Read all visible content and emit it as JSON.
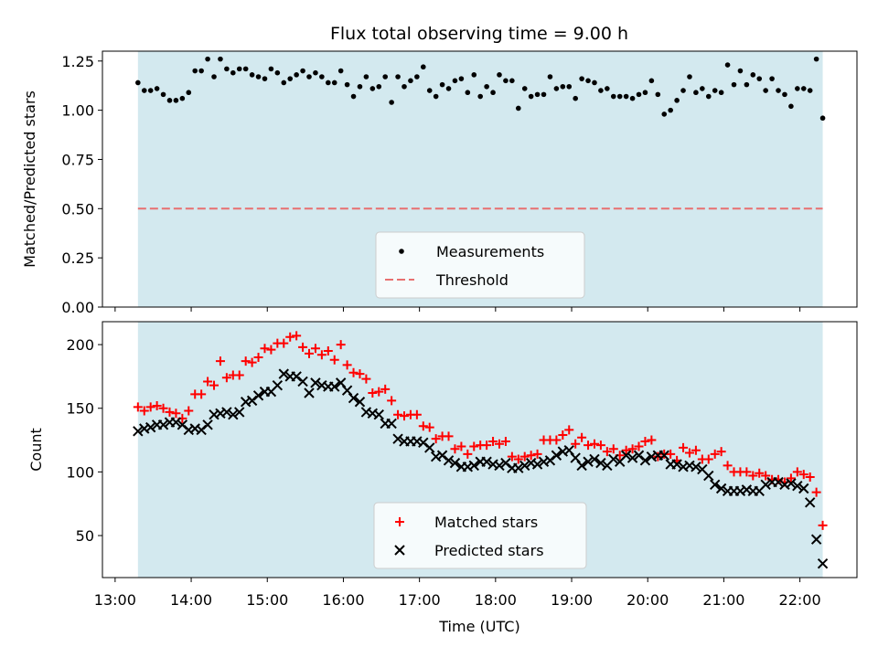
{
  "title": "Flux total observing time = 9.00 h",
  "chart_data": [
    {
      "type": "scatter",
      "ylabel": "Matched/Predicted stars",
      "xlabel": "",
      "ylim": [
        0,
        1.3
      ],
      "xlim": [
        "12:50",
        "22:45"
      ],
      "grid": false,
      "legend_position": "lower-center",
      "yticks": [
        "0.00",
        "0.25",
        "0.50",
        "0.75",
        "1.00",
        "1.25"
      ],
      "observing_window": [
        "13:18",
        "22:18"
      ],
      "observing_window_color": "#d3e9ef",
      "threshold": {
        "name": "Threshold",
        "value": 0.5,
        "color": "#e87070",
        "style": "dashed"
      },
      "series": [
        {
          "name": "Measurements",
          "color": "#000000",
          "marker": "dot",
          "x": [
            "13:18",
            "13:23",
            "13:28",
            "13:33",
            "13:38",
            "13:43",
            "13:48",
            "13:53",
            "13:58",
            "14:03",
            "14:08",
            "14:13",
            "14:18",
            "14:23",
            "14:28",
            "14:33",
            "14:38",
            "14:43",
            "14:48",
            "14:53",
            "14:58",
            "15:03",
            "15:08",
            "15:13",
            "15:18",
            "15:23",
            "15:28",
            "15:33",
            "15:38",
            "15:43",
            "15:48",
            "15:53",
            "15:58",
            "16:03",
            "16:08",
            "16:13",
            "16:18",
            "16:23",
            "16:28",
            "16:33",
            "16:38",
            "16:43",
            "16:48",
            "16:53",
            "16:58",
            "17:03",
            "17:08",
            "17:13",
            "17:18",
            "17:23",
            "17:28",
            "17:33",
            "17:38",
            "17:43",
            "17:48",
            "17:53",
            "17:58",
            "18:03",
            "18:08",
            "18:13",
            "18:18",
            "18:23",
            "18:28",
            "18:33",
            "18:38",
            "18:43",
            "18:48",
            "18:53",
            "18:58",
            "19:03",
            "19:08",
            "19:13",
            "19:18",
            "19:23",
            "19:28",
            "19:33",
            "19:38",
            "19:43",
            "19:48",
            "19:53",
            "19:58",
            "20:03",
            "20:08",
            "20:13",
            "20:18",
            "20:23",
            "20:28",
            "20:33",
            "20:38",
            "20:43",
            "20:48",
            "20:53",
            "20:58",
            "21:03",
            "21:08",
            "21:13",
            "21:18",
            "21:23",
            "21:28",
            "21:33",
            "21:38",
            "21:43",
            "21:48",
            "21:53",
            "21:58",
            "22:03",
            "22:08",
            "22:13",
            "22:18"
          ],
          "values": [
            1.14,
            1.1,
            1.1,
            1.11,
            1.08,
            1.05,
            1.05,
            1.06,
            1.09,
            1.2,
            1.2,
            1.26,
            1.17,
            1.26,
            1.21,
            1.19,
            1.21,
            1.21,
            1.18,
            1.17,
            1.16,
            1.21,
            1.19,
            1.14,
            1.16,
            1.18,
            1.2,
            1.17,
            1.19,
            1.17,
            1.14,
            1.14,
            1.2,
            1.13,
            1.07,
            1.12,
            1.17,
            1.11,
            1.12,
            1.17,
            1.04,
            1.17,
            1.12,
            1.15,
            1.17,
            1.22,
            1.1,
            1.07,
            1.13,
            1.11,
            1.15,
            1.16,
            1.09,
            1.18,
            1.07,
            1.12,
            1.09,
            1.18,
            1.15,
            1.15,
            1.01,
            1.11,
            1.07,
            1.08,
            1.08,
            1.17,
            1.11,
            1.12,
            1.12,
            1.06,
            1.16,
            1.15,
            1.14,
            1.1,
            1.11,
            1.07,
            1.07,
            1.07,
            1.06,
            1.08,
            1.09,
            1.15,
            1.08,
            0.98,
            1.0,
            1.05,
            1.1,
            1.17,
            1.09,
            1.11,
            1.07,
            1.1,
            1.09,
            1.23,
            1.13,
            1.2,
            1.13,
            1.18,
            1.16,
            1.1,
            1.16,
            1.1,
            1.08,
            1.02,
            1.11,
            1.11,
            1.1,
            1.26,
            0.96
          ]
        }
      ]
    },
    {
      "type": "scatter",
      "ylabel": "Count",
      "xlabel": "Time (UTC)",
      "ylim": [
        17,
        218
      ],
      "xlim": [
        "12:50",
        "22:45"
      ],
      "grid": false,
      "legend_position": "lower-center",
      "yticks": [
        "50",
        "100",
        "150",
        "200"
      ],
      "xticks": [
        "13:00",
        "14:00",
        "15:00",
        "16:00",
        "17:00",
        "18:00",
        "19:00",
        "20:00",
        "21:00",
        "22:00"
      ],
      "observing_window": [
        "13:18",
        "22:18"
      ],
      "observing_window_color": "#d3e9ef",
      "series": [
        {
          "name": "Matched stars",
          "color": "#ff0000",
          "marker": "plus",
          "x": [
            "13:18",
            "13:23",
            "13:28",
            "13:33",
            "13:38",
            "13:43",
            "13:48",
            "13:53",
            "13:58",
            "14:03",
            "14:08",
            "14:13",
            "14:18",
            "14:23",
            "14:28",
            "14:33",
            "14:38",
            "14:43",
            "14:48",
            "14:53",
            "14:58",
            "15:03",
            "15:08",
            "15:13",
            "15:18",
            "15:23",
            "15:28",
            "15:33",
            "15:38",
            "15:43",
            "15:48",
            "15:53",
            "15:58",
            "16:03",
            "16:08",
            "16:13",
            "16:18",
            "16:23",
            "16:28",
            "16:33",
            "16:38",
            "16:43",
            "16:48",
            "16:53",
            "16:58",
            "17:03",
            "17:08",
            "17:13",
            "17:18",
            "17:23",
            "17:28",
            "17:33",
            "17:38",
            "17:43",
            "17:48",
            "17:53",
            "17:58",
            "18:03",
            "18:08",
            "18:13",
            "18:18",
            "18:23",
            "18:28",
            "18:33",
            "18:38",
            "18:43",
            "18:48",
            "18:53",
            "18:58",
            "19:03",
            "19:08",
            "19:13",
            "19:18",
            "19:23",
            "19:28",
            "19:33",
            "19:38",
            "19:43",
            "19:48",
            "19:53",
            "19:58",
            "20:03",
            "20:08",
            "20:13",
            "20:18",
            "20:23",
            "20:28",
            "20:33",
            "20:38",
            "20:43",
            "20:48",
            "20:53",
            "20:58",
            "21:03",
            "21:08",
            "21:13",
            "21:18",
            "21:23",
            "21:28",
            "21:33",
            "21:38",
            "21:43",
            "21:48",
            "21:53",
            "21:58",
            "22:03",
            "22:08",
            "22:13",
            "22:18"
          ],
          "values": [
            151,
            148,
            151,
            152,
            150,
            147,
            146,
            142,
            148,
            161,
            161,
            171,
            168,
            187,
            174,
            176,
            176,
            187,
            186,
            190,
            197,
            196,
            201,
            201,
            206,
            207,
            198,
            193,
            197,
            192,
            195,
            188,
            200,
            184,
            178,
            177,
            173,
            162,
            163,
            165,
            156,
            145,
            144,
            145,
            145,
            136,
            135,
            126,
            128,
            128,
            118,
            120,
            114,
            120,
            121,
            121,
            124,
            122,
            124,
            112,
            110,
            112,
            113,
            114,
            125,
            125,
            125,
            129,
            133,
            122,
            127,
            121,
            122,
            121,
            116,
            118,
            113,
            117,
            118,
            120,
            124,
            125,
            112,
            114,
            114,
            109,
            119,
            115,
            117,
            110,
            110,
            114,
            116,
            105,
            100,
            100,
            100,
            97,
            99,
            97,
            94,
            94,
            92,
            95,
            100,
            98,
            96,
            84,
            58
          ]
        },
        {
          "name": "Predicted stars",
          "color": "#000000",
          "marker": "x",
          "x": [
            "13:18",
            "13:23",
            "13:28",
            "13:33",
            "13:38",
            "13:43",
            "13:48",
            "13:53",
            "13:58",
            "14:03",
            "14:08",
            "14:13",
            "14:18",
            "14:23",
            "14:28",
            "14:33",
            "14:38",
            "14:43",
            "14:48",
            "14:53",
            "14:58",
            "15:03",
            "15:08",
            "15:13",
            "15:18",
            "15:23",
            "15:28",
            "15:33",
            "15:38",
            "15:43",
            "15:48",
            "15:53",
            "15:58",
            "16:03",
            "16:08",
            "16:13",
            "16:18",
            "16:23",
            "16:28",
            "16:33",
            "16:38",
            "16:43",
            "16:48",
            "16:53",
            "16:58",
            "17:03",
            "17:08",
            "17:13",
            "17:18",
            "17:23",
            "17:28",
            "17:33",
            "17:38",
            "17:43",
            "17:48",
            "17:53",
            "17:58",
            "18:03",
            "18:08",
            "18:13",
            "18:18",
            "18:23",
            "18:28",
            "18:33",
            "18:38",
            "18:43",
            "18:48",
            "18:53",
            "18:58",
            "19:03",
            "19:08",
            "19:13",
            "19:18",
            "19:23",
            "19:28",
            "19:33",
            "19:38",
            "19:43",
            "19:48",
            "19:53",
            "19:58",
            "20:03",
            "20:08",
            "20:13",
            "20:18",
            "20:23",
            "20:28",
            "20:33",
            "20:38",
            "20:43",
            "20:48",
            "20:53",
            "20:58",
            "21:03",
            "21:08",
            "21:13",
            "21:18",
            "21:23",
            "21:28",
            "21:33",
            "21:38",
            "21:43",
            "21:48",
            "21:53",
            "21:58",
            "22:03",
            "22:08",
            "22:13",
            "22:18"
          ],
          "values": [
            132,
            134,
            135,
            137,
            137,
            139,
            139,
            137,
            133,
            134,
            133,
            137,
            145,
            146,
            147,
            145,
            147,
            155,
            156,
            160,
            163,
            163,
            168,
            177,
            175,
            175,
            171,
            162,
            170,
            168,
            167,
            167,
            170,
            164,
            158,
            155,
            147,
            146,
            145,
            138,
            138,
            126,
            124,
            124,
            124,
            123,
            119,
            112,
            113,
            109,
            107,
            104,
            104,
            105,
            108,
            108,
            106,
            105,
            107,
            103,
            103,
            105,
            107,
            106,
            108,
            109,
            113,
            116,
            117,
            111,
            105,
            108,
            110,
            107,
            105,
            110,
            108,
            113,
            111,
            113,
            109,
            112,
            113,
            113,
            106,
            106,
            104,
            105,
            104,
            102,
            97,
            90,
            87,
            85,
            85,
            85,
            86,
            85,
            85,
            90,
            92,
            92,
            90,
            91,
            89,
            87,
            76,
            47,
            28
          ]
        }
      ]
    }
  ]
}
